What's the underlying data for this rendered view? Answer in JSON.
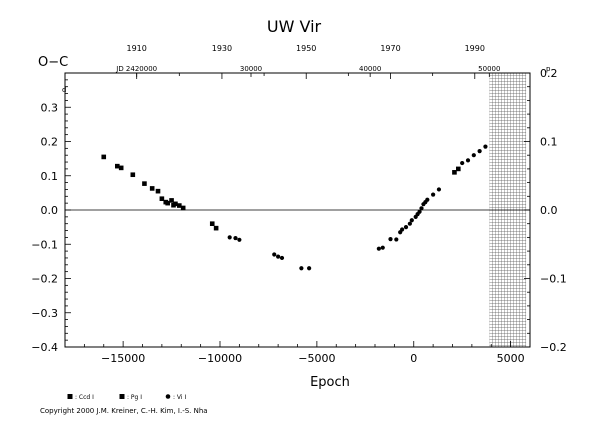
{
  "chart_data": {
    "type": "scatter",
    "title": "UW  Vir",
    "ylabel": "O−C",
    "xlabel": "Epoch",
    "y_unit_mark": "d",
    "right_unit_mark": "p",
    "xlim": [
      -18000,
      6000
    ],
    "ylim": [
      -0.4,
      0.4
    ],
    "right_ylim": [
      -0.2,
      0.2
    ],
    "x_ticks": [
      "−15000",
      "−10000",
      "−5000",
      "0",
      "5000"
    ],
    "x_tick_values": [
      -15000,
      -10000,
      -5000,
      0,
      5000
    ],
    "y_ticks": [
      "0.3",
      "0.2",
      "0.1",
      "0.0",
      "−0.1",
      "−0.2",
      "−0.3",
      "−0.4"
    ],
    "y_tick_values": [
      0.3,
      0.2,
      0.1,
      0.0,
      -0.1,
      -0.2,
      -0.3,
      -0.4
    ],
    "right_ticks": [
      "0.2",
      "0.1",
      "0.0",
      "−0.1",
      "−0.2"
    ],
    "right_tick_values": [
      0.2,
      0.1,
      0.0,
      -0.1,
      -0.2
    ],
    "top_year_ticks": [
      "1910",
      "1930",
      "1950",
      "1970",
      "1990"
    ],
    "top_year_epochs": [
      -14300,
      -9900,
      -5550,
      -1200,
      3150
    ],
    "top_jd_labels": [
      "JD  2420000",
      "30000",
      "40000",
      "50000"
    ],
    "top_jd_epochs": [
      -14300,
      -8400,
      -2250,
      3900
    ],
    "future_region_x": [
      3900,
      5800
    ],
    "zero_line": 0.0,
    "series": [
      {
        "name": ": Ccd  I",
        "marker": "square",
        "x": [
          -16000,
          -15300,
          -15100,
          -14500,
          -13900,
          -13500,
          -13200,
          -12800,
          -12500,
          -12300,
          -12100,
          -11900,
          -10400,
          -10200,
          2100,
          2300
        ],
        "y": [
          0.155,
          0.128,
          0.123,
          0.103,
          0.077,
          0.063,
          0.055,
          0.023,
          0.028,
          0.018,
          0.013,
          0.006,
          -0.04,
          -0.053,
          0.11,
          0.12
        ]
      },
      {
        "name": ": Pg  I",
        "marker": "square",
        "x": [
          -13000,
          -12700,
          -12400
        ],
        "y": [
          0.033,
          0.02,
          0.014
        ]
      },
      {
        "name": ": Vi  I",
        "marker": "dot",
        "x": [
          -9500,
          -9200,
          -9000,
          -7200,
          -7000,
          -6800,
          -5800,
          -5400,
          -1800,
          -1600,
          -1200,
          -900,
          -700,
          -600,
          -400,
          -200,
          -100,
          100,
          200,
          300,
          400,
          500,
          600,
          700,
          1000,
          1300,
          2500,
          2800,
          3100,
          3400,
          3700
        ],
        "y": [
          -0.08,
          -0.082,
          -0.087,
          -0.13,
          -0.136,
          -0.14,
          -0.17,
          -0.17,
          -0.113,
          -0.11,
          -0.085,
          -0.086,
          -0.065,
          -0.057,
          -0.05,
          -0.04,
          -0.03,
          -0.02,
          -0.012,
          -0.005,
          0.005,
          0.017,
          0.023,
          0.03,
          0.045,
          0.06,
          0.137,
          0.145,
          0.16,
          0.172,
          0.185
        ]
      }
    ]
  },
  "copyright": "Copyright 2000  J.M. Kreiner, C.-H. Kim, I.-S. Nha"
}
